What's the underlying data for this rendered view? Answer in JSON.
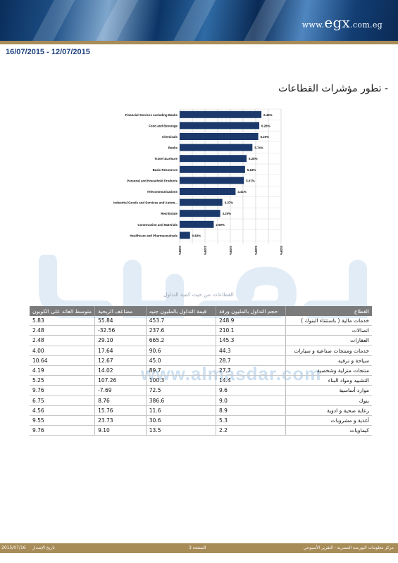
{
  "header": {
    "site": "www.egx.com.eg",
    "site_prefix": "www.",
    "site_brand": "egx",
    "site_suffix": ".com.eg",
    "date_range": "16/07/2015 - 12/07/2015"
  },
  "section_title": "- تطور مؤشرات القطاعات",
  "chart_data": {
    "type": "bar",
    "orientation": "horizontal",
    "categories": [
      "Financial Services excluding Banks",
      "Food and Beverage",
      "Chemicals",
      "Banks",
      "Travel &Leisure",
      "Basic Resources",
      "Personal and Household Products",
      "Telecommunications",
      "Industrial Goods and Services and Autom...",
      "Real Estate",
      "Construction and Materials",
      "Healthcare and Pharmaceuticals"
    ],
    "values": [
      6.45,
      6.28,
      6.2,
      5.74,
      5.28,
      5.16,
      5.07,
      4.41,
      3.37,
      3.2,
      2.69,
      0.82
    ],
    "data_labels": [
      "6.45%",
      "6.28%",
      "6.20%",
      "5.74%",
      "5.28%",
      "5.16%",
      "5.07%",
      "4.41%",
      "3.37%",
      "3.20%",
      "2.69%",
      "0.82%"
    ],
    "x_ticks": [
      "0.00%",
      "2.00%",
      "4.00%",
      "6.00%",
      "8.00%"
    ],
    "xlim": [
      0,
      8
    ],
    "grid": true,
    "bar_color": "#1b3a6b"
  },
  "watermark": {
    "url": "www.almasdar.com"
  },
  "table": {
    "caption": "القطاعات من حيث كمية التداول",
    "headers": [
      "القطاع",
      "حجم التداول بالمليون ورقة",
      "قيمة التداول بالمليون جنيه",
      "مضاعف الربحية",
      "متوسط العائد على الكوبون"
    ],
    "rows": [
      [
        "خدمات مالية ( باستثناء البنوك )",
        "248.9",
        "453.7",
        "55.84",
        "5.83"
      ],
      [
        "اتصالات",
        "210.1",
        "237.6",
        "-32.56",
        "2.48"
      ],
      [
        "العقارات",
        "145.3",
        "665.2",
        "29.10",
        "2.48"
      ],
      [
        "خدمات ومنتجات صناعية و سيارات",
        "44.3",
        "90.6",
        "17.64",
        "4.00"
      ],
      [
        "سياحة و ترفيه",
        "28.7",
        "45.0",
        "12.67",
        "10.64"
      ],
      [
        "منتجات منزلية وشخصية",
        "27.7",
        "89.7",
        "14.02",
        "4.19"
      ],
      [
        "التشييد ومواد البناء",
        "14.4",
        "100.3",
        "107.26",
        "5.25"
      ],
      [
        "موارد أساسية",
        "9.6",
        "72.5",
        "-7.69",
        "9.76"
      ],
      [
        "بنوك",
        "9.0",
        "386.6",
        "8.76",
        "6.75"
      ],
      [
        "رعاية صحية و ادوية",
        "8.9",
        "11.6",
        "15.76",
        "4.56"
      ],
      [
        "أغذية و مشروبات",
        "5.3",
        "30.6",
        "23.73",
        "9.55"
      ],
      [
        "كيماويات",
        "2.2",
        "13.5",
        "9.10",
        "9.76"
      ]
    ]
  },
  "footer": {
    "center_text": "مركز معلومات البورصة المصرية - التقرير الأسبوعي",
    "page_text": "الصفحة 3",
    "issue_label": "تاريخ الإصدار",
    "issue_date": "2015/07/16"
  },
  "colors": {
    "accent_gold": "#a88c58",
    "navy": "#1b3a6b",
    "date_blue": "#1b3f7d",
    "table_header": "#7b7b7b"
  }
}
